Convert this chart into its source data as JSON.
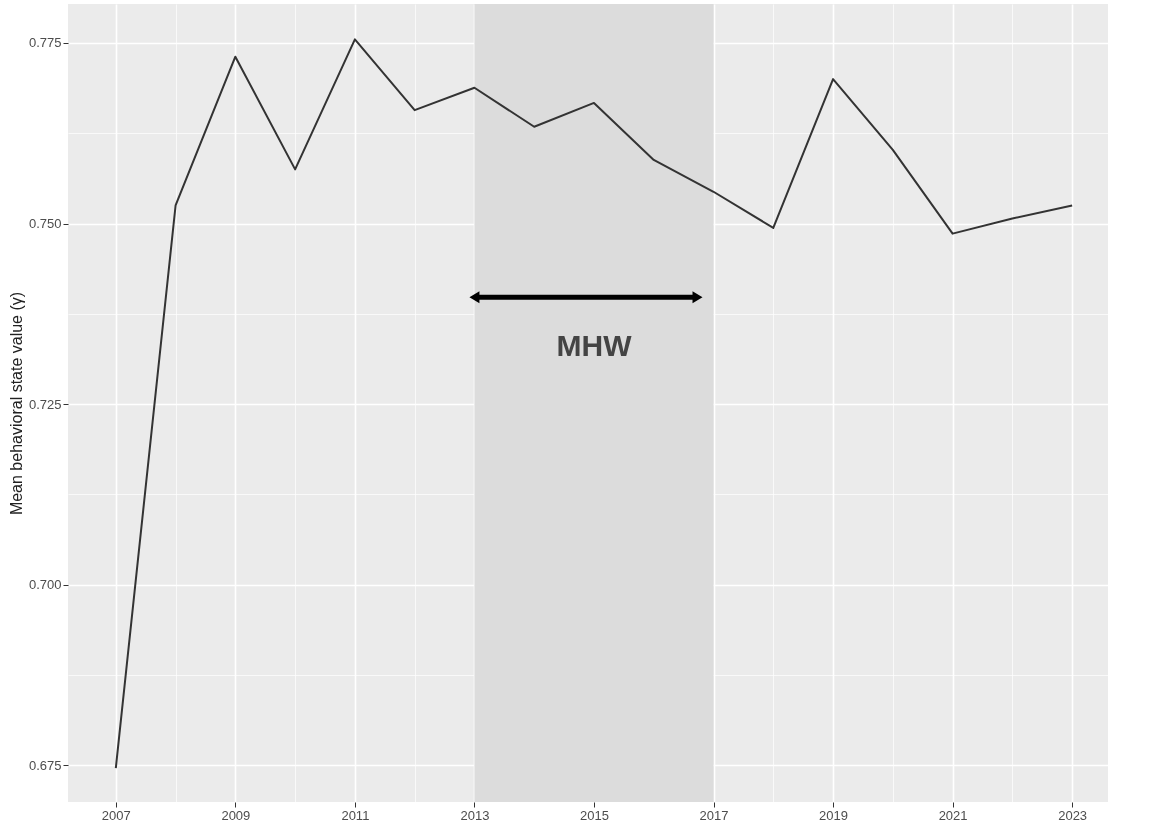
{
  "chart_data": {
    "type": "line",
    "ylabel": "Mean behavioral state value (γ)",
    "x": [
      2007,
      2008,
      2009,
      2010,
      2011,
      2012,
      2013,
      2014,
      2015,
      2016,
      2017,
      2018,
      2019,
      2020,
      2021,
      2022,
      2023
    ],
    "series": [
      {
        "color": "#333333",
        "values": [
          0.6746,
          0.7525,
          0.7731,
          0.7575,
          0.7755,
          0.7657,
          0.7688,
          0.7634,
          0.7667,
          0.7588,
          0.7544,
          0.7494,
          0.77,
          0.7602,
          0.7486,
          0.7507,
          0.7525
        ]
      }
    ],
    "xlim": [
      2006.2,
      2023.6
    ],
    "ylim": [
      0.6699,
      0.7804
    ],
    "xticks": [
      2007,
      2009,
      2011,
      2013,
      2015,
      2017,
      2019,
      2021,
      2023
    ],
    "yticks": [
      0.675,
      {
        "value": 0.7,
        "label": "0.700"
      },
      0.725,
      {
        "value": 0.75,
        "label": "0.750"
      },
      0.775
    ],
    "bands": [
      {
        "axis": "x",
        "from": 2013,
        "to": 2017,
        "color": "#dcdcdc"
      }
    ],
    "annotations": [
      "MHW"
    ],
    "grid": true
  }
}
